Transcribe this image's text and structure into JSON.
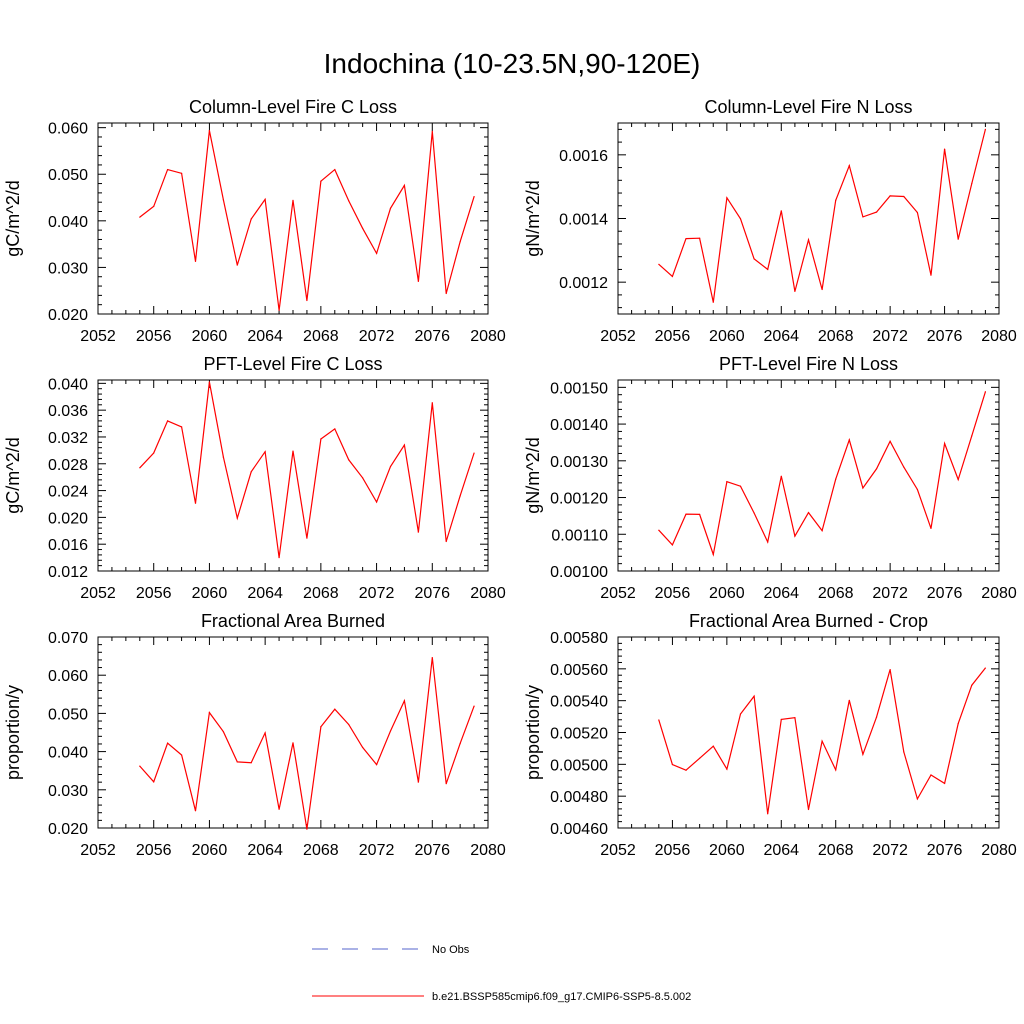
{
  "figure": {
    "title": "Indochina (10-23.5N,90-120E)"
  },
  "legend": {
    "items": [
      {
        "label": "No Obs",
        "color": "#5566cc",
        "style": "dashed"
      },
      {
        "label": "b.e21.BSSP585cmip6.f09_g17.CMIP6-SSP5-8.5.002",
        "color": "#ff0000",
        "style": "solid"
      }
    ]
  },
  "chart_data": [
    {
      "type": "line",
      "title": "Column-Level Fire C Loss",
      "xlabel": "",
      "ylabel": "gC/m^2/d",
      "xlim": [
        2052,
        2080
      ],
      "ylim": [
        0.02,
        0.061
      ],
      "xticks": [
        "2052",
        "2056",
        "2060",
        "2064",
        "2068",
        "2072",
        "2076",
        "2080"
      ],
      "yticks": [
        0.02,
        0.03,
        0.04,
        0.05,
        0.06
      ],
      "ytick_labels": [
        "0.020",
        "0.030",
        "0.040",
        "0.050",
        "0.060"
      ],
      "x": [
        2055,
        2056,
        2057,
        2058,
        2059,
        2060,
        2061,
        2062,
        2063,
        2064,
        2065,
        2066,
        2067,
        2068,
        2069,
        2070,
        2071,
        2072,
        2073,
        2074,
        2075,
        2076,
        2077,
        2078,
        2079
      ],
      "series": [
        {
          "color": "#ff0000",
          "values": [
            0.0408,
            0.0431,
            0.051,
            0.0502,
            0.0313,
            0.0594,
            0.0445,
            0.0305,
            0.0404,
            0.0446,
            0.0208,
            0.0444,
            0.0229,
            0.0485,
            0.051,
            0.0443,
            0.0384,
            0.033,
            0.0427,
            0.0476,
            0.027,
            0.0592,
            0.0244,
            0.0355,
            0.0452
          ]
        }
      ]
    },
    {
      "type": "line",
      "title": "Column-Level Fire N Loss",
      "xlabel": "",
      "ylabel": "gN/m^2/d",
      "xlim": [
        2052,
        2080
      ],
      "ylim": [
        0.0011,
        0.0017
      ],
      "xticks": [
        "2052",
        "2056",
        "2060",
        "2064",
        "2068",
        "2072",
        "2076",
        "2080"
      ],
      "yticks": [
        0.0012,
        0.0014,
        0.0016
      ],
      "ytick_labels": [
        "0.0012",
        "0.0014",
        "0.0016"
      ],
      "x": [
        2055,
        2056,
        2057,
        2058,
        2059,
        2060,
        2061,
        2062,
        2063,
        2064,
        2065,
        2066,
        2067,
        2068,
        2069,
        2070,
        2071,
        2072,
        2073,
        2074,
        2075,
        2076,
        2077,
        2078,
        2079
      ],
      "series": [
        {
          "color": "#ff0000",
          "values": [
            0.001256,
            0.001218,
            0.001337,
            0.001338,
            0.001137,
            0.001465,
            0.001399,
            0.001273,
            0.00124,
            0.001424,
            0.001171,
            0.001333,
            0.001177,
            0.001457,
            0.001566,
            0.001405,
            0.00142,
            0.001471,
            0.001469,
            0.001419,
            0.001222,
            0.001618,
            0.001335,
            0.00151,
            0.00168
          ]
        }
      ]
    },
    {
      "type": "line",
      "title": "PFT-Level Fire C Loss",
      "xlabel": "",
      "ylabel": "gC/m^2/d",
      "xlim": [
        2052,
        2080
      ],
      "ylim": [
        0.012,
        0.0405
      ],
      "xticks": [
        "2052",
        "2056",
        "2060",
        "2064",
        "2068",
        "2072",
        "2076",
        "2080"
      ],
      "yticks": [
        0.012,
        0.016,
        0.02,
        0.024,
        0.028,
        0.032,
        0.036,
        0.04
      ],
      "ytick_labels": [
        "0.012",
        "0.016",
        "0.020",
        "0.024",
        "0.028",
        "0.032",
        "0.036",
        "0.040"
      ],
      "x": [
        2055,
        2056,
        2057,
        2058,
        2059,
        2060,
        2061,
        2062,
        2063,
        2064,
        2065,
        2066,
        2067,
        2068,
        2069,
        2070,
        2071,
        2072,
        2073,
        2074,
        2075,
        2076,
        2077,
        2078,
        2079
      ],
      "series": [
        {
          "color": "#ff0000",
          "values": [
            0.0274,
            0.0296,
            0.0344,
            0.0335,
            0.0221,
            0.0402,
            0.029,
            0.0199,
            0.0268,
            0.0298,
            0.014,
            0.0299,
            0.0169,
            0.0317,
            0.0332,
            0.0286,
            0.0259,
            0.0223,
            0.0276,
            0.0308,
            0.0178,
            0.0371,
            0.0164,
            0.0232,
            0.0296
          ]
        }
      ]
    },
    {
      "type": "line",
      "title": "PFT-Level Fire N Loss",
      "xlabel": "",
      "ylabel": "gN/m^2/d",
      "xlim": [
        2052,
        2080
      ],
      "ylim": [
        0.001,
        0.00152
      ],
      "xticks": [
        "2052",
        "2056",
        "2060",
        "2064",
        "2068",
        "2072",
        "2076",
        "2080"
      ],
      "yticks": [
        0.001,
        0.0011,
        0.0012,
        0.0013,
        0.0014,
        0.0015
      ],
      "ytick_labels": [
        "0.00100",
        "0.00110",
        "0.00120",
        "0.00130",
        "0.00140",
        "0.00150"
      ],
      "x": [
        2055,
        2056,
        2057,
        2058,
        2059,
        2060,
        2061,
        2062,
        2063,
        2064,
        2065,
        2066,
        2067,
        2068,
        2069,
        2070,
        2071,
        2072,
        2073,
        2074,
        2075,
        2076,
        2077,
        2078,
        2079
      ],
      "series": [
        {
          "color": "#ff0000",
          "values": [
            0.001111,
            0.001071,
            0.001155,
            0.001154,
            0.001045,
            0.001243,
            0.001231,
            0.001158,
            0.001079,
            0.001258,
            0.001095,
            0.001159,
            0.00111,
            0.00125,
            0.001357,
            0.001226,
            0.001278,
            0.001353,
            0.001283,
            0.001222,
            0.001116,
            0.001347,
            0.001249,
            0.001368,
            0.001488
          ]
        }
      ]
    },
    {
      "type": "line",
      "title": "Fractional Area Burned",
      "xlabel": "",
      "ylabel": "proportion/y",
      "xlim": [
        2052,
        2080
      ],
      "ylim": [
        0.02,
        0.07
      ],
      "xticks": [
        "2052",
        "2056",
        "2060",
        "2064",
        "2068",
        "2072",
        "2076",
        "2080"
      ],
      "yticks": [
        0.02,
        0.03,
        0.04,
        0.05,
        0.06,
        0.07
      ],
      "ytick_labels": [
        "0.020",
        "0.030",
        "0.040",
        "0.050",
        "0.060",
        "0.070"
      ],
      "x": [
        2055,
        2056,
        2057,
        2058,
        2059,
        2060,
        2061,
        2062,
        2063,
        2064,
        2065,
        2066,
        2067,
        2068,
        2069,
        2070,
        2071,
        2072,
        2073,
        2074,
        2075,
        2076,
        2077,
        2078,
        2079
      ],
      "series": [
        {
          "color": "#ff0000",
          "values": [
            0.0362,
            0.0321,
            0.0422,
            0.0391,
            0.0245,
            0.0502,
            0.0452,
            0.0373,
            0.0371,
            0.0449,
            0.0249,
            0.0423,
            0.0197,
            0.0465,
            0.0511,
            0.0471,
            0.0411,
            0.0366,
            0.0454,
            0.0533,
            0.032,
            0.0646,
            0.0316,
            0.0421,
            0.0519
          ]
        }
      ]
    },
    {
      "type": "line",
      "title": "Fractional Area Burned - Crop",
      "xlabel": "",
      "ylabel": "proportion/y",
      "xlim": [
        2052,
        2080
      ],
      "ylim": [
        0.0046,
        0.0058
      ],
      "xticks": [
        "2052",
        "2056",
        "2060",
        "2064",
        "2068",
        "2072",
        "2076",
        "2080"
      ],
      "yticks": [
        0.0046,
        0.0048,
        0.005,
        0.0052,
        0.0054,
        0.0056,
        0.0058
      ],
      "ytick_labels": [
        "0.00460",
        "0.00480",
        "0.00500",
        "0.00520",
        "0.00540",
        "0.00560",
        "0.00580"
      ],
      "x": [
        2055,
        2056,
        2057,
        2058,
        2059,
        2060,
        2061,
        2062,
        2063,
        2064,
        2065,
        2066,
        2067,
        2068,
        2069,
        2070,
        2071,
        2072,
        2073,
        2074,
        2075,
        2076,
        2077,
        2078,
        2079
      ],
      "series": [
        {
          "color": "#ff0000",
          "values": [
            0.005279,
            0.004999,
            0.004963,
            0.005038,
            0.005114,
            0.00497,
            0.005316,
            0.005428,
            0.004689,
            0.005282,
            0.005293,
            0.004716,
            0.005146,
            0.004965,
            0.005402,
            0.005063,
            0.005296,
            0.005595,
            0.005078,
            0.004783,
            0.004933,
            0.00488,
            0.005256,
            0.005497,
            0.005605
          ]
        }
      ]
    }
  ]
}
